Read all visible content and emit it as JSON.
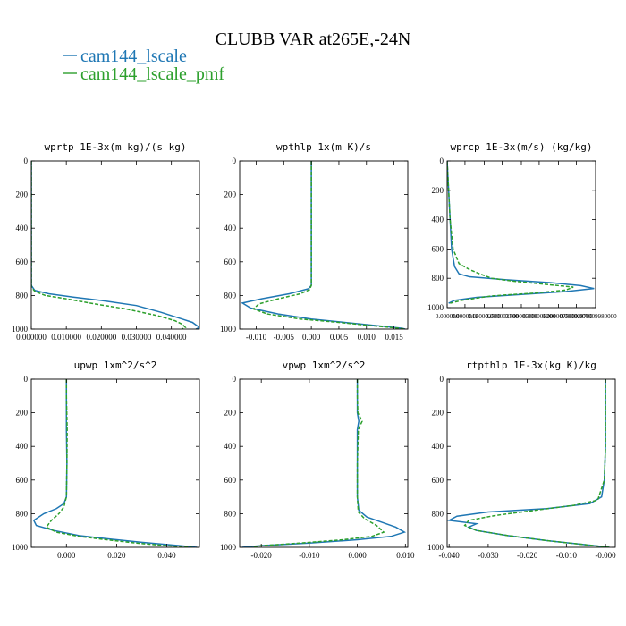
{
  "figure": {
    "title": "CLUBB VAR at265E,-24N",
    "legend": [
      {
        "name": "cam144_lscale",
        "color": "#1f77b4",
        "style": "solid"
      },
      {
        "name": "cam144_lscale_pmf",
        "color": "#2ca02c",
        "style": "dashed"
      }
    ]
  },
  "chart_data": [
    {
      "type": "line",
      "title": "wprtp  1E-3x(m kg)/(s kg)",
      "ylim": [
        1000,
        0
      ],
      "xlim": [
        0.0,
        0.048
      ],
      "yticks": [
        0,
        200,
        400,
        600,
        800,
        1000
      ],
      "xticks": [
        0.0,
        0.01,
        0.02,
        0.03,
        0.04
      ],
      "xticklabels": [
        "0.000000",
        "0.010000",
        "0.020000",
        "0.030000",
        "0.040000"
      ],
      "series": [
        {
          "name": "cam144_lscale",
          "color": "#1f77b4",
          "dash": false,
          "points": [
            [
              0,
              0
            ],
            [
              0,
              100
            ],
            [
              0,
              300
            ],
            [
              0,
              500
            ],
            [
              0,
              700
            ],
            [
              0,
              740
            ],
            [
              0.001,
              770
            ],
            [
              0.005,
              790
            ],
            [
              0.012,
              810
            ],
            [
              0.02,
              830
            ],
            [
              0.03,
              860
            ],
            [
              0.037,
              900
            ],
            [
              0.043,
              940
            ],
            [
              0.046,
              960
            ],
            [
              0.048,
              990
            ],
            [
              0.047,
              1000
            ]
          ]
        },
        {
          "name": "cam144_lscale_pmf",
          "color": "#2ca02c",
          "dash": true,
          "points": [
            [
              0,
              0
            ],
            [
              0,
              100
            ],
            [
              0,
              300
            ],
            [
              0,
              500
            ],
            [
              0,
              700
            ],
            [
              0,
              750
            ],
            [
              0.001,
              775
            ],
            [
              0.004,
              800
            ],
            [
              0.01,
              820
            ],
            [
              0.018,
              850
            ],
            [
              0.027,
              880
            ],
            [
              0.036,
              920
            ],
            [
              0.041,
              950
            ],
            [
              0.043,
              970
            ],
            [
              0.044,
              990
            ],
            [
              0.043,
              1000
            ]
          ]
        }
      ]
    },
    {
      "type": "line",
      "title": "wpthlp  1x(m K)/s",
      "ylim": [
        1000,
        0
      ],
      "xlim": [
        -0.013,
        0.0175
      ],
      "yticks": [
        0,
        200,
        400,
        600,
        800,
        1000
      ],
      "xticks": [
        -0.01,
        -0.005,
        0.0,
        0.005,
        0.01,
        0.015
      ],
      "xticklabels": [
        "-0.010",
        "-0.005",
        "0.000",
        "0.005",
        "0.010",
        "0.015"
      ],
      "series": [
        {
          "name": "cam144_lscale",
          "color": "#1f77b4",
          "dash": false,
          "points": [
            [
              0,
              0
            ],
            [
              0,
              200
            ],
            [
              0,
              400
            ],
            [
              0,
              600
            ],
            [
              0,
              740
            ],
            [
              -0.0005,
              760
            ],
            [
              -0.004,
              790
            ],
            [
              -0.009,
              820
            ],
            [
              -0.0125,
              845
            ],
            [
              -0.011,
              875
            ],
            [
              -0.006,
              910
            ],
            [
              0,
              940
            ],
            [
              0.006,
              960
            ],
            [
              0.012,
              980
            ],
            [
              0.0165,
              995
            ],
            [
              0.017,
              1000
            ]
          ]
        },
        {
          "name": "cam144_lscale_pmf",
          "color": "#2ca02c",
          "dash": true,
          "points": [
            [
              0,
              0
            ],
            [
              0,
              200
            ],
            [
              0,
              400
            ],
            [
              0,
              600
            ],
            [
              0,
              740
            ],
            [
              -0.0003,
              765
            ],
            [
              -0.002,
              790
            ],
            [
              -0.006,
              820
            ],
            [
              -0.0095,
              850
            ],
            [
              -0.0105,
              880
            ],
            [
              -0.008,
              910
            ],
            [
              -0.002,
              940
            ],
            [
              0.005,
              960
            ],
            [
              0.011,
              980
            ],
            [
              0.016,
              995
            ],
            [
              0.0168,
              1000
            ]
          ]
        }
      ]
    },
    {
      "type": "line",
      "title": "wprcp  1E-3x(m/s) (kg/kg)",
      "ylim": [
        1000,
        0
      ],
      "xlim": [
        0.0,
        1e-05
      ],
      "yticks": [
        0,
        200,
        400,
        600,
        800,
        1000
      ],
      "xticks": [
        0.0,
        1.2e-06,
        2.5e-06,
        3.7e-06,
        5e-06,
        6.2e-06,
        7.5e-06,
        8.7e-06,
        1e-05
      ],
      "xticklabels": [
        "0.000000",
        "0.0000012",
        "0.000002500",
        "0.000003700",
        "0.000005000",
        "0.000006200",
        "0.000007500",
        "0.000008700",
        "0.000009980000"
      ],
      "series": [
        {
          "name": "cam144_lscale",
          "color": "#1f77b4",
          "dash": false,
          "points": [
            [
              0,
              0
            ],
            [
              1e-07,
              200
            ],
            [
              2e-07,
              400
            ],
            [
              3e-07,
              600
            ],
            [
              5e-07,
              720
            ],
            [
              8e-07,
              770
            ],
            [
              1.5e-06,
              790
            ],
            [
              4e-06,
              810
            ],
            [
              7e-06,
              830
            ],
            [
              9e-06,
              850
            ],
            [
              9.9e-06,
              870
            ],
            [
              8e-06,
              890
            ],
            [
              5e-06,
              910
            ],
            [
              2e-06,
              930
            ],
            [
              5e-07,
              950
            ],
            [
              1e-07,
              970
            ]
          ]
        },
        {
          "name": "cam144_lscale_pmf",
          "color": "#2ca02c",
          "dash": true,
          "points": [
            [
              0,
              0
            ],
            [
              1e-07,
              200
            ],
            [
              2e-07,
              400
            ],
            [
              4e-07,
              600
            ],
            [
              8e-07,
              700
            ],
            [
              1.5e-06,
              740
            ],
            [
              2.2e-06,
              770
            ],
            [
              3e-06,
              800
            ],
            [
              4.5e-06,
              820
            ],
            [
              6.5e-06,
              840
            ],
            [
              8.5e-06,
              860
            ],
            [
              8e-06,
              880
            ],
            [
              6e-06,
              900
            ],
            [
              3e-06,
              920
            ],
            [
              1e-06,
              950
            ],
            [
              2e-07,
              970
            ]
          ]
        }
      ]
    },
    {
      "type": "line",
      "title": "upwp  1xm^2/s^2",
      "ylim": [
        1000,
        0
      ],
      "xlim": [
        -0.014,
        0.053
      ],
      "yticks": [
        0,
        200,
        400,
        600,
        800,
        1000
      ],
      "xticks": [
        0.0,
        0.02,
        0.04
      ],
      "xticklabels": [
        "0.000",
        "0.020",
        "0.040"
      ],
      "series": [
        {
          "name": "cam144_lscale",
          "color": "#1f77b4",
          "dash": false,
          "points": [
            [
              0,
              0
            ],
            [
              0,
              100
            ],
            [
              0,
              300
            ],
            [
              0.0002,
              500
            ],
            [
              0,
              700
            ],
            [
              -0.001,
              740
            ],
            [
              -0.004,
              770
            ],
            [
              -0.009,
              800
            ],
            [
              -0.013,
              840
            ],
            [
              -0.012,
              870
            ],
            [
              -0.005,
              900
            ],
            [
              0.005,
              930
            ],
            [
              0.017,
              950
            ],
            [
              0.03,
              970
            ],
            [
              0.045,
              990
            ],
            [
              0.052,
              1000
            ]
          ]
        },
        {
          "name": "cam144_lscale_pmf",
          "color": "#2ca02c",
          "dash": true,
          "points": [
            [
              0,
              0
            ],
            [
              0,
              100
            ],
            [
              0.0003,
              300
            ],
            [
              0.0002,
              500
            ],
            [
              0,
              700
            ],
            [
              -0.001,
              760
            ],
            [
              -0.003,
              800
            ],
            [
              -0.006,
              840
            ],
            [
              -0.008,
              880
            ],
            [
              -0.004,
              910
            ],
            [
              0.005,
              935
            ],
            [
              0.016,
              955
            ],
            [
              0.028,
              975
            ],
            [
              0.04,
              990
            ],
            [
              0.05,
              1000
            ]
          ]
        }
      ]
    },
    {
      "type": "line",
      "title": "vpwp  1xm^2/s^2",
      "ylim": [
        1000,
        0
      ],
      "xlim": [
        -0.0245,
        0.0105
      ],
      "yticks": [
        0,
        200,
        400,
        600,
        800,
        1000
      ],
      "xticks": [
        -0.02,
        -0.01,
        0.0,
        0.01
      ],
      "xticklabels": [
        "-0.020",
        "-0.010",
        "0.000",
        "0.010"
      ],
      "series": [
        {
          "name": "cam144_lscale",
          "color": "#1f77b4",
          "dash": false,
          "points": [
            [
              0,
              0
            ],
            [
              0,
              100
            ],
            [
              0,
              200
            ],
            [
              0.0003,
              250
            ],
            [
              0,
              300
            ],
            [
              0,
              500
            ],
            [
              0,
              700
            ],
            [
              0.0003,
              780
            ],
            [
              0.002,
              820
            ],
            [
              0.005,
              850
            ],
            [
              0.008,
              880
            ],
            [
              0.0098,
              910
            ],
            [
              0.007,
              935
            ],
            [
              0,
              955
            ],
            [
              -0.01,
              975
            ],
            [
              -0.02,
              990
            ],
            [
              -0.024,
              1000
            ]
          ]
        },
        {
          "name": "cam144_lscale_pmf",
          "color": "#2ca02c",
          "dash": true,
          "points": [
            [
              0,
              0
            ],
            [
              0,
              100
            ],
            [
              0.0001,
              200
            ],
            [
              0.001,
              250
            ],
            [
              0.0002,
              300
            ],
            [
              0,
              500
            ],
            [
              0,
              700
            ],
            [
              0.0002,
              790
            ],
            [
              0.0015,
              830
            ],
            [
              0.004,
              870
            ],
            [
              0.0055,
              910
            ],
            [
              0.003,
              935
            ],
            [
              -0.003,
              955
            ],
            [
              -0.012,
              975
            ],
            [
              -0.02,
              990
            ],
            [
              -0.022,
              1000
            ]
          ]
        }
      ]
    },
    {
      "type": "line",
      "title": "rtpthlp  1E-3x(kg K)/kg",
      "ylim": [
        1000,
        0
      ],
      "xlim": [
        -0.0405,
        0.0025
      ],
      "yticks": [
        0,
        200,
        400,
        600,
        800,
        1000
      ],
      "xticks": [
        -0.04,
        -0.03,
        -0.02,
        -0.01,
        0.0
      ],
      "xticklabels": [
        "-0.040",
        "-0.030",
        "-0.020",
        "-0.010",
        "-0.000"
      ],
      "series": [
        {
          "name": "cam144_lscale",
          "color": "#1f77b4",
          "dash": false,
          "points": [
            [
              0,
              0
            ],
            [
              0,
              200
            ],
            [
              0,
              400
            ],
            [
              -0.0003,
              600
            ],
            [
              -0.001,
              700
            ],
            [
              -0.004,
              740
            ],
            [
              -0.015,
              770
            ],
            [
              -0.03,
              790
            ],
            [
              -0.038,
              815
            ],
            [
              -0.04,
              840
            ],
            [
              -0.033,
              860
            ],
            [
              -0.035,
              880
            ],
            [
              -0.033,
              900
            ],
            [
              -0.025,
              930
            ],
            [
              -0.015,
              960
            ],
            [
              -0.005,
              985
            ],
            [
              0.001,
              1000
            ]
          ]
        },
        {
          "name": "cam144_lscale_pmf",
          "color": "#2ca02c",
          "dash": true,
          "points": [
            [
              0,
              0
            ],
            [
              0,
              200
            ],
            [
              0,
              400
            ],
            [
              -0.0003,
              600
            ],
            [
              -0.002,
              720
            ],
            [
              -0.008,
              750
            ],
            [
              -0.018,
              780
            ],
            [
              -0.028,
              810
            ],
            [
              -0.035,
              840
            ],
            [
              -0.036,
              870
            ],
            [
              -0.033,
              900
            ],
            [
              -0.025,
              930
            ],
            [
              -0.015,
              960
            ],
            [
              -0.005,
              985
            ],
            [
              0.001,
              1000
            ]
          ]
        }
      ]
    }
  ]
}
